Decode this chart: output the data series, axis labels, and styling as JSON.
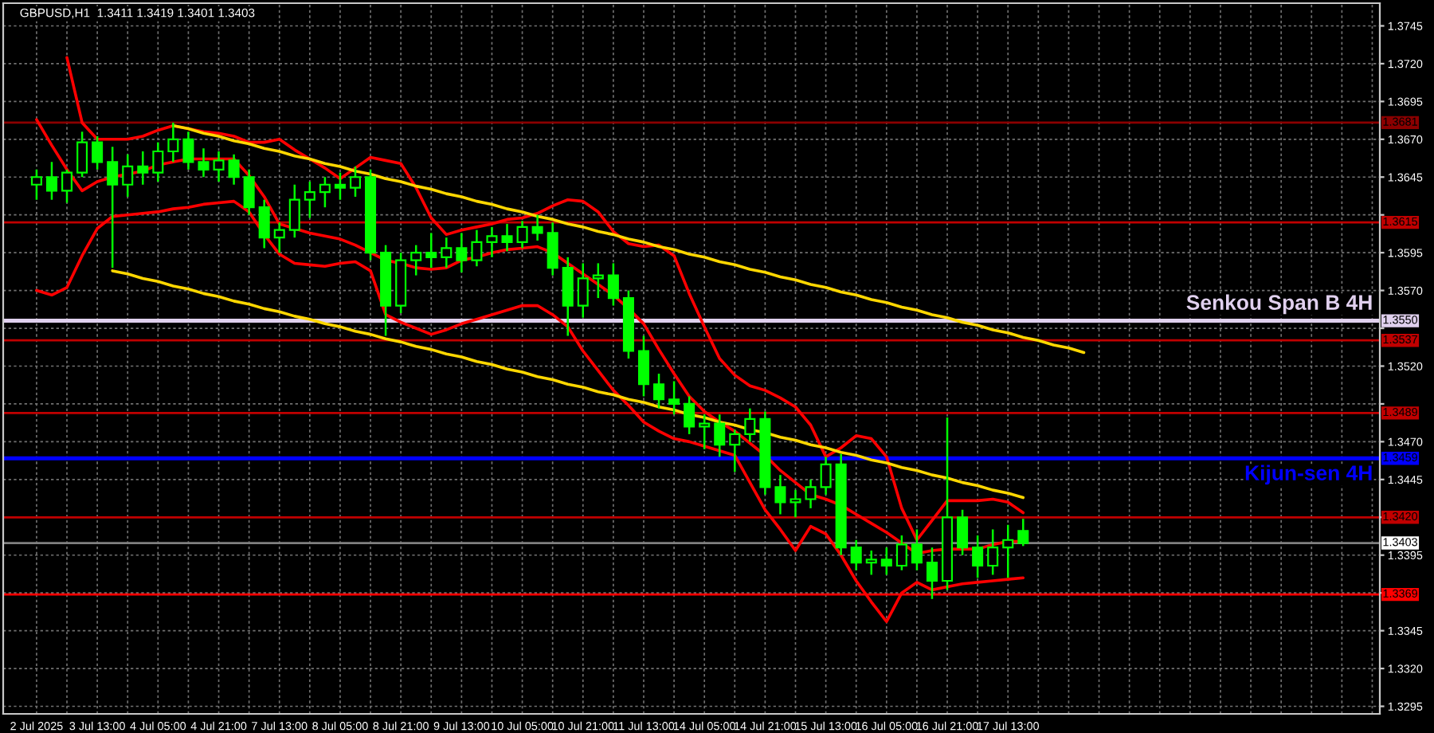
{
  "chart_data": {
    "type": "candlestick",
    "title": "GBPUSD,H1  1.3411 1.3419 1.3401 1.3403",
    "color": "#00ff00",
    "categories": [
      "2 Jul 2025",
      null,
      null,
      null,
      "3 Jul 13:00",
      null,
      null,
      null,
      "4 Jul 05:00",
      null,
      null,
      null,
      "4 Jul 21:00",
      null,
      null,
      null,
      "7 Jul 13:00",
      null,
      null,
      null,
      "8 Jul 05:00",
      null,
      null,
      null,
      "8 Jul 21:00",
      null,
      null,
      null,
      "9 Jul 13:00",
      null,
      null,
      null,
      "10 Jul 05:00",
      null,
      null,
      null,
      "10 Jul 21:00",
      null,
      null,
      null,
      "11 Jul 13:00",
      null,
      null,
      null,
      "14 Jul 05:00",
      null,
      null,
      null,
      "14 Jul 21:00",
      null,
      null,
      null,
      "15 Jul 13:00",
      null,
      null,
      null,
      "16 Jul 05:00",
      null,
      null,
      null,
      "16 Jul 21:00",
      null,
      null,
      null,
      "17 Jul 13:00",
      null,
      null,
      null,
      null,
      null,
      null,
      null,
      null,
      null,
      null,
      null,
      null,
      null,
      null,
      null,
      null,
      null,
      null,
      null,
      null,
      null,
      null,
      null,
      null
    ],
    "ohlc": [
      [
        1.364,
        1.365,
        1.363,
        1.3645
      ],
      [
        1.3645,
        1.3655,
        1.363,
        1.3636
      ],
      [
        1.3636,
        1.365,
        1.3628,
        1.3648
      ],
      [
        1.3648,
        1.3675,
        1.3645,
        1.3668
      ],
      [
        1.3668,
        1.3672,
        1.365,
        1.3655
      ],
      [
        1.3655,
        1.3665,
        1.3585,
        1.364
      ],
      [
        1.364,
        1.366,
        1.3632,
        1.3652
      ],
      [
        1.3652,
        1.3662,
        1.364,
        1.3648
      ],
      [
        1.3648,
        1.3668,
        1.3642,
        1.3662
      ],
      [
        1.3662,
        1.3681,
        1.3655,
        1.367
      ],
      [
        1.367,
        1.3675,
        1.365,
        1.3655
      ],
      [
        1.3655,
        1.3664,
        1.3645,
        1.365
      ],
      [
        1.365,
        1.3662,
        1.3642,
        1.3656
      ],
      [
        1.3656,
        1.366,
        1.364,
        1.3645
      ],
      [
        1.3645,
        1.365,
        1.362,
        1.3625
      ],
      [
        1.3625,
        1.363,
        1.3598,
        1.3605
      ],
      [
        1.3605,
        1.3615,
        1.3595,
        1.361
      ],
      [
        1.361,
        1.364,
        1.3605,
        1.363
      ],
      [
        1.363,
        1.3642,
        1.3618,
        1.3635
      ],
      [
        1.3635,
        1.3645,
        1.3625,
        1.364
      ],
      [
        1.364,
        1.3648,
        1.363,
        1.3638
      ],
      [
        1.3638,
        1.3652,
        1.3632,
        1.3645
      ],
      [
        1.3645,
        1.365,
        1.359,
        1.3595
      ],
      [
        1.3595,
        1.36,
        1.354,
        1.356
      ],
      [
        1.356,
        1.3595,
        1.3555,
        1.359
      ],
      [
        1.359,
        1.36,
        1.358,
        1.3595
      ],
      [
        1.3595,
        1.3608,
        1.3585,
        1.3592
      ],
      [
        1.3592,
        1.3605,
        1.3585,
        1.3598
      ],
      [
        1.3598,
        1.3608,
        1.3582,
        1.359
      ],
      [
        1.359,
        1.361,
        1.3586,
        1.3602
      ],
      [
        1.3602,
        1.3612,
        1.3592,
        1.3606
      ],
      [
        1.3606,
        1.3614,
        1.3596,
        1.3602
      ],
      [
        1.3602,
        1.3616,
        1.3598,
        1.3612
      ],
      [
        1.3612,
        1.362,
        1.3603,
        1.3608
      ],
      [
        1.3608,
        1.3615,
        1.358,
        1.3585
      ],
      [
        1.3585,
        1.3592,
        1.354,
        1.356
      ],
      [
        1.356,
        1.3588,
        1.3552,
        1.3578
      ],
      [
        1.3578,
        1.3588,
        1.3565,
        1.358
      ],
      [
        1.358,
        1.3588,
        1.356,
        1.3565
      ],
      [
        1.3565,
        1.357,
        1.3525,
        1.353
      ],
      [
        1.353,
        1.354,
        1.35,
        1.3508
      ],
      [
        1.3508,
        1.3515,
        1.3492,
        1.3498
      ],
      [
        1.3498,
        1.351,
        1.3488,
        1.3495
      ],
      [
        1.3495,
        1.35,
        1.3475,
        1.348
      ],
      [
        1.348,
        1.3488,
        1.3465,
        1.3482
      ],
      [
        1.3482,
        1.3488,
        1.346,
        1.3468
      ],
      [
        1.3468,
        1.3478,
        1.345,
        1.3475
      ],
      [
        1.3475,
        1.3492,
        1.347,
        1.3485
      ],
      [
        1.3485,
        1.349,
        1.3435,
        1.344
      ],
      [
        1.344,
        1.3448,
        1.3422,
        1.343
      ],
      [
        1.343,
        1.3438,
        1.342,
        1.3432
      ],
      [
        1.3432,
        1.3445,
        1.3426,
        1.344
      ],
      [
        1.344,
        1.346,
        1.3435,
        1.3455
      ],
      [
        1.3455,
        1.3462,
        1.3395,
        1.34
      ],
      [
        1.34,
        1.3405,
        1.3385,
        1.339
      ],
      [
        1.339,
        1.3398,
        1.3382,
        1.3392
      ],
      [
        1.3392,
        1.34,
        1.3382,
        1.3388
      ],
      [
        1.3388,
        1.3408,
        1.3385,
        1.3402
      ],
      [
        1.3402,
        1.3412,
        1.3385,
        1.339
      ],
      [
        1.339,
        1.34,
        1.3366,
        1.3378
      ],
      [
        1.3378,
        1.3486,
        1.3372,
        1.342
      ],
      [
        1.342,
        1.3425,
        1.3395,
        1.34
      ],
      [
        1.34,
        1.3408,
        1.338,
        1.3388
      ],
      [
        1.3388,
        1.3412,
        1.3382,
        1.34
      ],
      [
        1.34,
        1.3415,
        1.338,
        1.3405
      ],
      [
        1.3411,
        1.3419,
        1.3401,
        1.3403
      ],
      null,
      null,
      null,
      null,
      null,
      null,
      null,
      null,
      null,
      null,
      null,
      null,
      null,
      null,
      null,
      null,
      null,
      null,
      null,
      null,
      null,
      null,
      null
    ],
    "series": [
      {
        "type": "line",
        "color": "#ff0000",
        "values": [
          null,
          null,
          1.3724,
          1.3681,
          1.367,
          1.367,
          1.367,
          1.3672,
          1.3676,
          1.3679,
          1.3677,
          1.3675,
          1.3674,
          1.3672,
          1.3668,
          1.3668,
          1.367,
          1.3663,
          1.3657,
          1.3651,
          1.3644,
          1.3651,
          1.3658,
          1.3656,
          1.3654,
          1.3638,
          1.3618,
          1.3607,
          1.361,
          1.3612,
          1.3614,
          1.3617,
          1.3618,
          1.3621,
          1.3626,
          1.363,
          1.3629,
          1.3622,
          1.3609,
          1.3601,
          1.3599,
          1.36,
          1.3593,
          1.3568,
          1.3546,
          1.3525,
          1.3514,
          1.3507,
          1.3504,
          1.3499,
          1.3493,
          1.3481,
          1.346,
          1.3466,
          1.3474,
          1.3472,
          1.346,
          1.3426,
          1.3405,
          1.3418,
          1.3431,
          1.3431,
          1.3431,
          1.3432,
          1.343,
          1.3423,
          null,
          null,
          null,
          null,
          null,
          null,
          null,
          null,
          null,
          null,
          null,
          null,
          null,
          null,
          null,
          null,
          null,
          null,
          null,
          null,
          null,
          null,
          null
        ]
      },
      {
        "type": "line",
        "color": "#ff0000",
        "values": [
          1.3683,
          1.3666,
          1.365,
          1.3636,
          1.3642,
          1.3645,
          1.3647,
          1.3649,
          1.3653,
          1.3655,
          1.3657,
          1.3657,
          1.3657,
          1.3657,
          1.3646,
          1.3632,
          1.3614,
          1.3611,
          1.3608,
          1.3606,
          1.3604,
          1.36,
          1.3595,
          1.359,
          1.3588,
          1.3585,
          1.3584,
          1.3585,
          1.359,
          1.3592,
          1.3595,
          1.3597,
          1.3598,
          1.3599,
          1.3595,
          1.3588,
          1.3581,
          1.3574,
          1.3567,
          1.3558,
          1.3548,
          1.3531,
          1.3515,
          1.35,
          1.349,
          1.3483,
          1.3477,
          1.3469,
          1.3461,
          1.3451,
          1.3443,
          1.3435,
          1.3432,
          1.3428,
          1.3422,
          1.3416,
          1.341,
          1.3403,
          1.3396,
          1.3398,
          1.3399,
          1.3399,
          1.3399,
          1.3402,
          1.3404,
          1.3404,
          null,
          null,
          null,
          null,
          null,
          null,
          null,
          null,
          null,
          null,
          null,
          null,
          null,
          null,
          null,
          null,
          null,
          null,
          null,
          null,
          null,
          null,
          null
        ]
      },
      {
        "type": "line",
        "color": "#ff0000",
        "values": [
          1.357,
          1.3567,
          1.3572,
          1.3593,
          1.3611,
          1.3619,
          1.362,
          1.3621,
          1.3622,
          1.3624,
          1.3625,
          1.3627,
          1.3628,
          1.3629,
          1.3622,
          1.3607,
          1.3594,
          1.3588,
          1.3587,
          1.3586,
          1.3588,
          1.3589,
          1.3583,
          1.3554,
          1.3549,
          1.3545,
          1.3541,
          1.3544,
          1.3548,
          1.3551,
          1.3554,
          1.3557,
          1.356,
          1.356,
          1.3554,
          1.3546,
          1.353,
          1.3517,
          1.3504,
          1.3494,
          1.3483,
          1.3477,
          1.3472,
          1.347,
          1.3467,
          1.3464,
          1.3461,
          1.3443,
          1.3425,
          1.3412,
          1.3398,
          1.3414,
          1.3409,
          1.3395,
          1.3378,
          1.3364,
          1.3351,
          1.337,
          1.3377,
          1.3372,
          1.3374,
          1.3376,
          1.3377,
          1.3378,
          1.3379,
          1.338,
          null,
          null,
          null,
          null,
          null,
          null,
          null,
          null,
          null,
          null,
          null,
          null,
          null,
          null,
          null,
          null,
          null,
          null,
          null,
          null,
          null,
          null,
          null
        ]
      },
      {
        "type": "line",
        "color": "#ffd700",
        "values": [
          null,
          null,
          null,
          null,
          null,
          null,
          null,
          null,
          null,
          1.3679,
          1.3677,
          1.3674,
          1.3672,
          1.3669,
          1.3667,
          1.3664,
          1.3662,
          1.3659,
          1.3657,
          1.3654,
          1.3652,
          1.3649,
          1.3647,
          1.3644,
          1.3642,
          1.3639,
          1.3637,
          1.3634,
          1.3632,
          1.3629,
          1.3627,
          1.3624,
          1.3622,
          1.3619,
          1.3617,
          1.3614,
          1.3612,
          1.3609,
          1.3607,
          1.3604,
          1.3602,
          1.3599,
          1.3597,
          1.3594,
          1.3592,
          1.3589,
          1.3587,
          1.3584,
          1.3582,
          1.3579,
          1.3577,
          1.3574,
          1.3572,
          1.3569,
          1.3567,
          1.3564,
          1.3562,
          1.3559,
          1.3557,
          1.3554,
          1.3552,
          1.3549,
          1.3547,
          1.3544,
          1.3542,
          1.3539,
          1.3537,
          1.3534,
          1.3532,
          1.3529,
          null,
          null,
          null,
          null,
          null,
          null,
          null,
          null,
          null,
          null,
          null,
          null,
          null,
          null,
          null,
          null,
          null,
          null,
          null
        ]
      },
      {
        "type": "line",
        "color": "#ffd700",
        "values": [
          null,
          null,
          null,
          null,
          null,
          1.3583,
          1.3581,
          1.3578,
          1.3576,
          1.3573,
          1.3571,
          1.3568,
          1.3566,
          1.3563,
          1.3561,
          1.3558,
          1.3556,
          1.3553,
          1.3551,
          1.3548,
          1.3546,
          1.3543,
          1.3541,
          1.3538,
          1.3536,
          1.3533,
          1.3531,
          1.3528,
          1.3526,
          1.3523,
          1.3521,
          1.3518,
          1.3516,
          1.3513,
          1.3511,
          1.3508,
          1.3506,
          1.3503,
          1.3501,
          1.3498,
          1.3496,
          1.3493,
          1.3491,
          1.3488,
          1.3486,
          1.3483,
          1.3481,
          1.3478,
          1.3476,
          1.3473,
          1.3471,
          1.3468,
          1.3466,
          1.3463,
          1.3461,
          1.3458,
          1.3456,
          1.3453,
          1.3451,
          1.3448,
          1.3446,
          1.3443,
          1.3441,
          1.3438,
          1.3436,
          1.3433,
          null,
          null,
          null,
          null,
          null,
          null,
          null,
          null,
          null,
          null,
          null,
          null,
          null,
          null,
          null,
          null,
          null,
          null,
          null,
          null,
          null,
          null,
          null
        ]
      }
    ],
    "ref_lines": [
      {
        "axis": "y",
        "value": 1.3681,
        "label": "1.3681",
        "color": "#8b0000"
      },
      {
        "axis": "y",
        "value": 1.3615,
        "label": "1.3615",
        "color": "#c00000"
      },
      {
        "axis": "y",
        "value": 1.355,
        "label": "1.3550",
        "color": "#e0d0ee"
      },
      {
        "axis": "y",
        "value": 1.3537,
        "label": "1.3537",
        "color": "#c00000"
      },
      {
        "axis": "y",
        "value": 1.3489,
        "label": "1.3489",
        "color": "#c00000"
      },
      {
        "axis": "y",
        "value": 1.3459,
        "label": "1.3459",
        "color": "#0000ff"
      },
      {
        "axis": "y",
        "value": 1.342,
        "label": "1.3420",
        "color": "#c00000"
      },
      {
        "axis": "y",
        "value": 1.3403,
        "label": "1.3403",
        "color": "#808080"
      },
      {
        "axis": "y",
        "value": 1.3369,
        "label": "1.3369",
        "color": "#ff0000"
      }
    ],
    "annotations": [
      {
        "text": "Senkou Span B 4H",
        "y": 1.355
      },
      {
        "text": "Kijun-sen 4H",
        "y": 1.3459
      }
    ],
    "ylim": [
      1.329,
      1.376
    ],
    "yticks": [
      1.3295,
      {
        "value": 1.332,
        "label": "1.3320"
      },
      1.3345,
      {
        "value": 1.337,
        "label": null
      },
      1.3395,
      {
        "value": 1.342,
        "label": null
      },
      1.3445,
      {
        "value": 1.347,
        "label": "1.3470"
      },
      {
        "value": 1.3495,
        "label": null
      },
      {
        "value": 1.352,
        "label": "1.3520"
      },
      {
        "value": 1.3545,
        "label": null
      },
      {
        "value": 1.357,
        "label": "1.3570"
      },
      1.3595,
      {
        "value": 1.362,
        "label": null
      },
      1.3645,
      {
        "value": 1.367,
        "label": "1.3670"
      },
      1.3695,
      {
        "value": 1.372,
        "label": "1.3720"
      },
      1.3745
    ],
    "grid": true
  }
}
